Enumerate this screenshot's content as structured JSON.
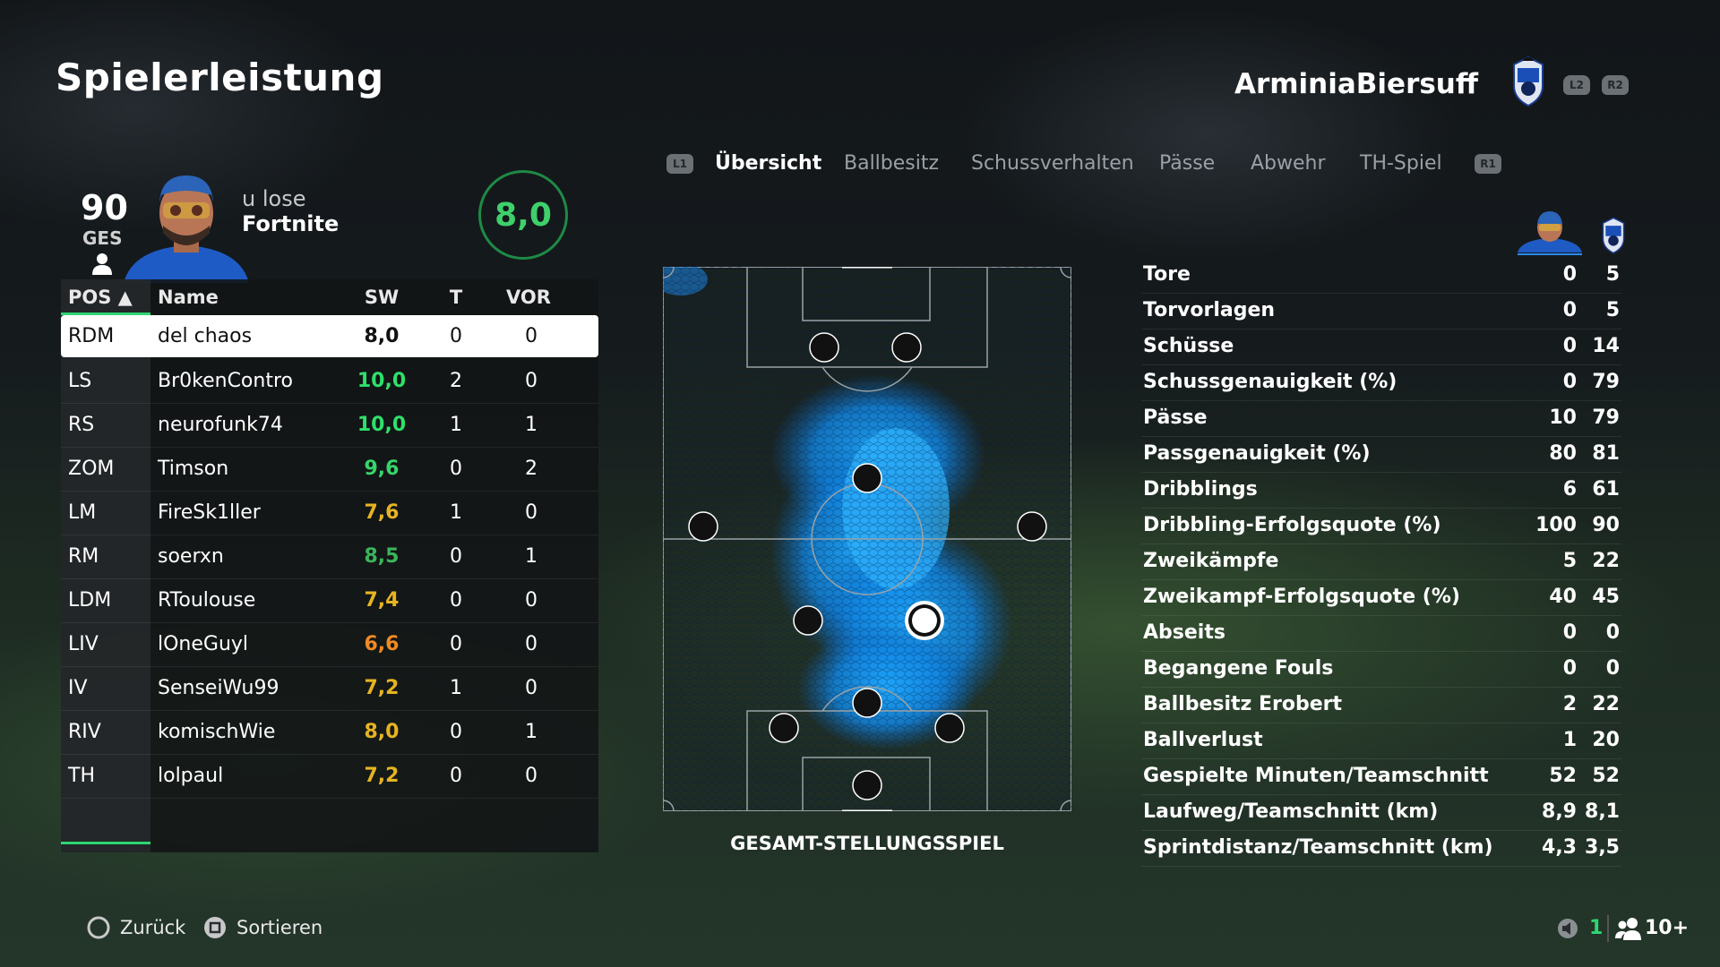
{
  "header": {
    "title": "Spielerleistung",
    "team_name": "ArminiaBiersuff",
    "btn_l2": "L2",
    "btn_r2": "R2"
  },
  "player": {
    "overall": "90",
    "overall_label": "GES",
    "name_line1": "u lose",
    "name_line2": "Fortnite",
    "match_rating": "8,0"
  },
  "table": {
    "headers": {
      "pos": "POS ▲",
      "name": "Name",
      "sw": "SW",
      "t": "T",
      "vor": "VOR"
    },
    "rows": [
      {
        "pos": "RDM",
        "name": "del chaos",
        "sw": "8,0",
        "t": "0",
        "vor": "0",
        "color": "#111111"
      },
      {
        "pos": "LS",
        "name": "Br0kenContro",
        "sw": "10,0",
        "t": "2",
        "vor": "0",
        "color": "#2ee06a"
      },
      {
        "pos": "RS",
        "name": "neurofunk74",
        "sw": "10,0",
        "t": "1",
        "vor": "1",
        "color": "#2ee06a"
      },
      {
        "pos": "ZOM",
        "name": "Timson",
        "sw": "9,6",
        "t": "0",
        "vor": "2",
        "color": "#36d46a"
      },
      {
        "pos": "LM",
        "name": "FireSk1ller",
        "sw": "7,6",
        "t": "1",
        "vor": "0",
        "color": "#e6b422"
      },
      {
        "pos": "RM",
        "name": "soerxn",
        "sw": "8,5",
        "t": "0",
        "vor": "1",
        "color": "#3bb55a"
      },
      {
        "pos": "LDM",
        "name": "RToulouse",
        "sw": "7,4",
        "t": "0",
        "vor": "0",
        "color": "#e6b422"
      },
      {
        "pos": "LIV",
        "name": "lOneGuyl",
        "sw": "6,6",
        "t": "0",
        "vor": "0",
        "color": "#f08a24"
      },
      {
        "pos": "IV",
        "name": "SenseiWu99",
        "sw": "7,2",
        "t": "1",
        "vor": "0",
        "color": "#e6b422"
      },
      {
        "pos": "RIV",
        "name": "komischWie",
        "sw": "8,0",
        "t": "0",
        "vor": "1",
        "color": "#e6b422"
      },
      {
        "pos": "TH",
        "name": "lolpaul",
        "sw": "7,2",
        "t": "0",
        "vor": "0",
        "color": "#e6b422"
      }
    ]
  },
  "tabs": {
    "left_btn": "L1",
    "right_btn": "R1",
    "items": [
      {
        "label": "Übersicht",
        "active": true
      },
      {
        "label": "Ballbesitz",
        "active": false
      },
      {
        "label": "Schussverhalten",
        "active": false
      },
      {
        "label": "Pässe",
        "active": false
      },
      {
        "label": "Abwehr",
        "active": false
      },
      {
        "label": "TH-Spiel",
        "active": false
      }
    ]
  },
  "pitch": {
    "label": "GESAMT-STELLUNGSSPIEL",
    "heatmap_color": "#1a9bff",
    "highlight_player": "RDM"
  },
  "stats": [
    {
      "label": "Tore",
      "player": "0",
      "team": "5"
    },
    {
      "label": "Torvorlagen",
      "player": "0",
      "team": "5"
    },
    {
      "label": "Schüsse",
      "player": "0",
      "team": "14"
    },
    {
      "label": "Schussgenauigkeit (%)",
      "player": "0",
      "team": "79"
    },
    {
      "label": "Pässe",
      "player": "10",
      "team": "79"
    },
    {
      "label": "Passgenauigkeit (%)",
      "player": "80",
      "team": "81"
    },
    {
      "label": "Dribblings",
      "player": "6",
      "team": "61"
    },
    {
      "label": "Dribbling-Erfolgsquote (%)",
      "player": "100",
      "team": "90"
    },
    {
      "label": "Zweikämpfe",
      "player": "5",
      "team": "22"
    },
    {
      "label": "Zweikampf-Erfolgsquote (%)",
      "player": "40",
      "team": "45"
    },
    {
      "label": "Abseits",
      "player": "0",
      "team": "0"
    },
    {
      "label": "Begangene Fouls",
      "player": "0",
      "team": "0"
    },
    {
      "label": "Ballbesitz Erobert",
      "player": "2",
      "team": "22"
    },
    {
      "label": "Ballverlust",
      "player": "1",
      "team": "20"
    },
    {
      "label": "Gespielte Minuten/Teamschnitt",
      "player": "52",
      "team": "52"
    },
    {
      "label": "Laufweg/Teamschnitt (km)",
      "player": "8,9",
      "team": "8,1"
    },
    {
      "label": "Sprintdistanz/Teamschnitt (km)",
      "player": "4,3",
      "team": "3,5"
    }
  ],
  "footer": {
    "back_label": "Zurück",
    "sort_label": "Sortieren",
    "page_number": "1",
    "friends_count": "10+"
  },
  "colors": {
    "accent_green": "#2ed573",
    "rating_ring": "#1e8a45"
  }
}
